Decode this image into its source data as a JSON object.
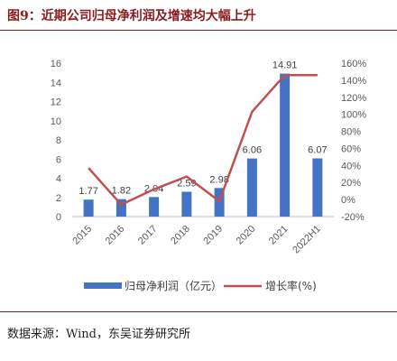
{
  "figure": {
    "title": "图9：近期公司归母净利润及增速均大幅上升",
    "source": "数据来源：Wind，东吴证券研究所"
  },
  "colors": {
    "title": "#8b1a1a",
    "bar": "#4472c4",
    "line": "#c0504d"
  },
  "chart_data": {
    "type": "bar",
    "categories": [
      "2015",
      "2016",
      "2017",
      "2018",
      "2019",
      "2020",
      "2021",
      "2022H1"
    ],
    "series": [
      {
        "name": "归母净利润（亿元）",
        "type": "bar",
        "axis": "left",
        "values": [
          1.77,
          1.82,
          2.04,
          2.59,
          2.98,
          6.06,
          14.91,
          6.07
        ]
      },
      {
        "name": "增长率(%)",
        "type": "line",
        "axis": "right",
        "values": [
          0.37,
          -0.06,
          0.12,
          0.27,
          -0.02,
          1.03,
          1.46,
          1.46
        ]
      }
    ],
    "y_left": {
      "min": 0,
      "max": 16,
      "ticks": [
        0,
        2,
        4,
        6,
        8,
        10,
        12,
        14,
        16
      ]
    },
    "y_right": {
      "min": -0.2,
      "max": 1.6,
      "ticks": [
        "-20%",
        "0%",
        "20%",
        "40%",
        "60%",
        "80%",
        "100%",
        "120%",
        "140%",
        "160%"
      ]
    },
    "bar_labels": [
      "1.77",
      "1.82",
      "2.04",
      "2.59",
      "2.98",
      "6.06",
      "14.91",
      "6.07"
    ],
    "legend": {
      "position": "bottom"
    },
    "grid": false
  }
}
